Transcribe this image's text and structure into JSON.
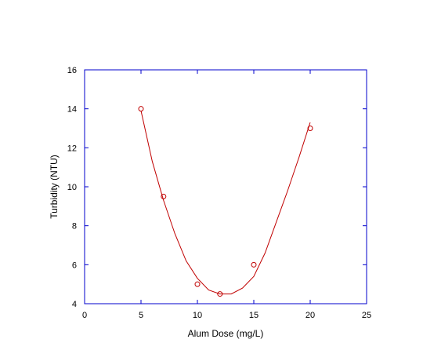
{
  "chart_data": {
    "type": "scatter",
    "title": "",
    "xlabel": "Alum Dose (mg/L)",
    "ylabel": "Turbidity (NTU)",
    "xlim": [
      0,
      25
    ],
    "ylim": [
      4,
      16
    ],
    "xticks": [
      0,
      5,
      10,
      15,
      20,
      25
    ],
    "yticks": [
      4,
      6,
      8,
      10,
      12,
      14,
      16
    ],
    "xtick_labels": [
      "0",
      "5",
      "10",
      "15",
      "20",
      "25"
    ],
    "ytick_labels": [
      "4",
      "6",
      "8",
      "10",
      "12",
      "14",
      "16"
    ],
    "grid": false,
    "legend": "none",
    "series": [
      {
        "kind": "points",
        "marker": "open-circle",
        "color": "#c00000",
        "x": [
          5,
          7,
          10,
          12,
          15,
          20
        ],
        "y": [
          14.0,
          9.5,
          5.0,
          4.5,
          6.0,
          13.0
        ]
      },
      {
        "kind": "fit-curve",
        "color": "#c00000",
        "x": [
          5,
          6,
          7,
          8,
          9,
          10,
          11,
          12,
          13,
          14,
          15,
          16,
          17,
          18,
          19,
          20
        ],
        "y": [
          13.9,
          11.3,
          9.3,
          7.6,
          6.2,
          5.3,
          4.7,
          4.5,
          4.5,
          4.8,
          5.4,
          6.6,
          8.2,
          9.8,
          11.5,
          13.3
        ]
      }
    ],
    "axis_color": "#0000cc"
  }
}
